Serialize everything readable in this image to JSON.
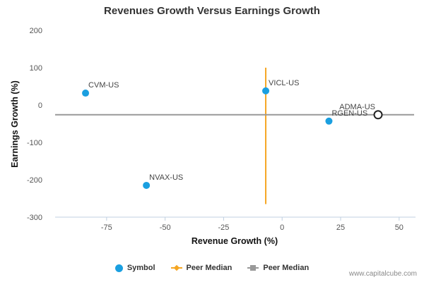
{
  "chart_data": {
    "type": "scatter",
    "title": "Revenues Growth Versus Earnings Growth",
    "xlabel": "Revenue Growth (%)",
    "ylabel": "Earnings Growth (%)",
    "xlim": [
      -97,
      57
    ],
    "ylim": [
      -300,
      200
    ],
    "x_ticks": [
      -75,
      -50,
      -25,
      0,
      25,
      50
    ],
    "y_ticks": [
      200,
      100,
      0,
      -100,
      -200,
      -300
    ],
    "grid": false,
    "legend_position": "bottom",
    "points": [
      {
        "label": "CVM-US",
        "x": -84,
        "y": 32
      },
      {
        "label": "VICL-US",
        "x": -7,
        "y": 38
      },
      {
        "label": "NVAX-US",
        "x": -58,
        "y": -215
      },
      {
        "label": "RGEN-US",
        "x": 20,
        "y": -43
      },
      {
        "label": "ADMA-US",
        "x": 41,
        "y": -26,
        "highlight": true
      }
    ],
    "peer_median_x": -7,
    "peer_median_x_range": [
      -265,
      100
    ],
    "peer_median_y": -26,
    "series": [
      {
        "name": "Symbol",
        "color": "#1a9fe0",
        "marker": "circle"
      },
      {
        "name": "Peer Median",
        "color": "#f5a623",
        "marker": "diamond"
      },
      {
        "name": "Peer Median",
        "color": "#999999",
        "marker": "square"
      }
    ]
  },
  "watermark": "www.capitalcube.com"
}
